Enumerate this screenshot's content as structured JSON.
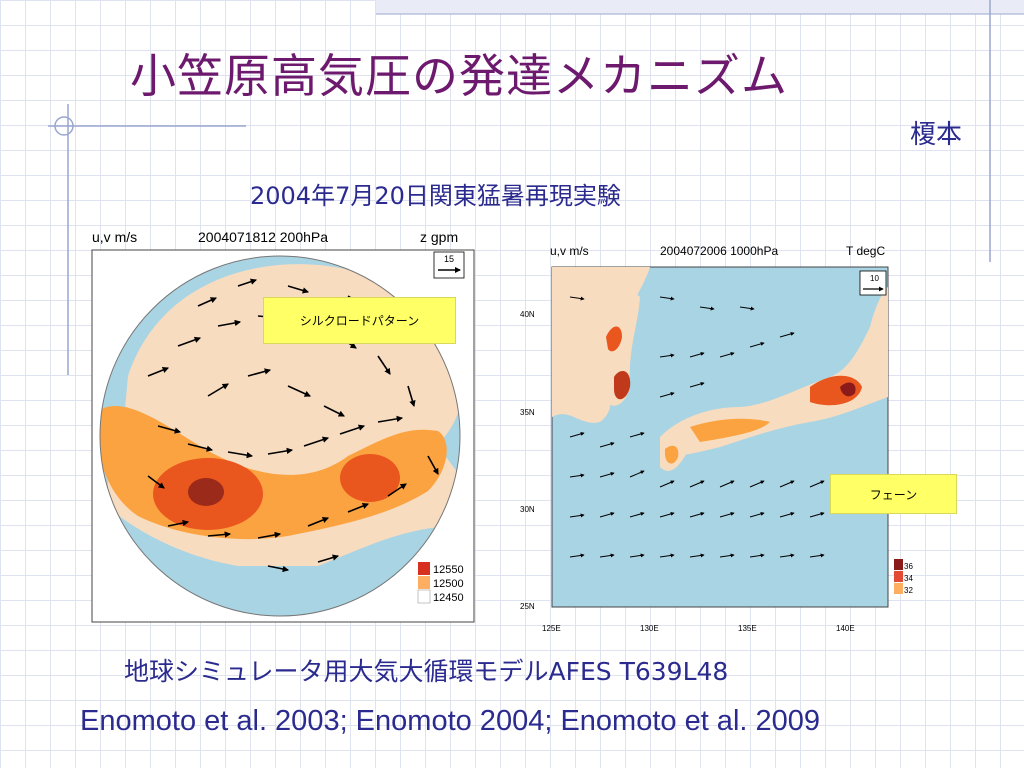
{
  "slide": {
    "title": "小笠原高気圧の発達メカニズム",
    "author": "榎本",
    "experiment": "2004年7月20日関東猛暑再現実験",
    "model": "地球シミュレータ用大気大循環モデルAFES T639L48",
    "references": "Enomoto et al. 2003; Enomoto 2004; Enomoto et al. 2009"
  },
  "left_map": {
    "title_left": "u,v m/s",
    "title_center": "2004071812 200hPa",
    "title_right": "z gpm",
    "ref_vector": "15",
    "callout": "シルクロードパターン",
    "legend": [
      "12550",
      "12500",
      "12450"
    ],
    "legend_colors": [
      "#d7301f",
      "#fdae61",
      "#ffffff"
    ]
  },
  "right_map": {
    "title_left": "u,v m/s",
    "title_center": "2004072006 1000hPa",
    "title_right": "T degC",
    "ref_vector": "10",
    "callout": "フェーン",
    "lat_ticks": [
      "40N",
      "35N",
      "30N",
      "25N"
    ],
    "lon_ticks": [
      "125E",
      "130E",
      "135E",
      "140E"
    ],
    "legend": [
      "36",
      "34",
      "32"
    ],
    "legend_colors": [
      "#8b1a1a",
      "#e34a33",
      "#fdae61"
    ]
  }
}
